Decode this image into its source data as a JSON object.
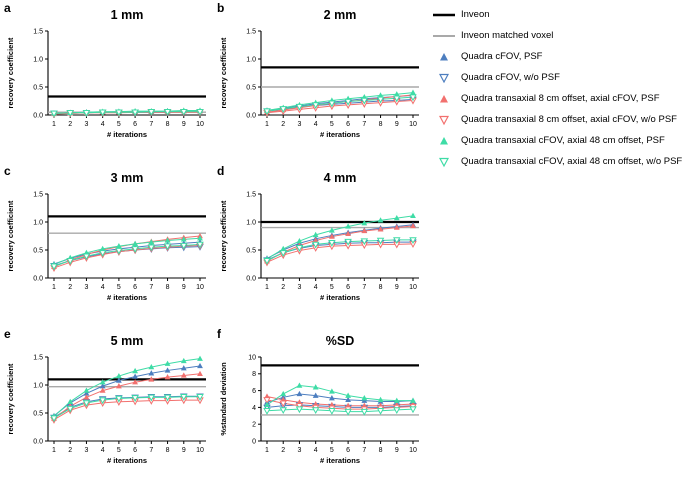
{
  "figure": {
    "background": "#ffffff"
  },
  "colors": {
    "inveon": "#000000",
    "inveon_matched": "#a9a9a9",
    "quadra_cfov": "#4d7ebf",
    "quadra_transaxial_offset": "#f2706e",
    "quadra_axial_offset": "#3edca6"
  },
  "panels": [
    {
      "letter": "a"
    },
    {
      "letter": "b"
    },
    {
      "letter": "c"
    },
    {
      "letter": "d"
    },
    {
      "letter": "e"
    },
    {
      "letter": "f"
    }
  ],
  "legend": {
    "items": [
      {
        "label": "Inveon",
        "swatch": "line",
        "color": "#000000",
        "width": 2.5
      },
      {
        "label": "Inveon matched voxel",
        "swatch": "line",
        "color": "#a9a9a9",
        "width": 2
      },
      {
        "label": "Quadra cFOV, PSF",
        "swatch": "triangle-up",
        "color": "#4d7ebf"
      },
      {
        "label": "Quadra cFOV, w/o PSF",
        "swatch": "triangle-down-open",
        "color": "#4d7ebf"
      },
      {
        "label": "Quadra transaxial 8 cm offset, axial cFOV, PSF",
        "swatch": "triangle-up",
        "color": "#f2706e"
      },
      {
        "label": "Quadra transaxial 8 cm offset, axial cFOV, w/o PSF",
        "swatch": "triangle-down-open",
        "color": "#f2706e"
      },
      {
        "label": "Quadra transaxial cFOV, axial 48 cm offset, PSF",
        "swatch": "triangle-up",
        "color": "#3edca6"
      },
      {
        "label": "Quadra transaxial cFOV, axial 48 cm offset, w/o PSF",
        "swatch": "triangle-down-open",
        "color": "#3edca6"
      }
    ]
  },
  "chart_data": [
    {
      "type": "line",
      "title": "1 mm",
      "xlabel": "# iterations",
      "ylabel": "recovery coefficient",
      "x": [
        1,
        2,
        3,
        4,
        5,
        6,
        7,
        8,
        9,
        10
      ],
      "ylim": [
        0,
        1.5
      ],
      "yticks": [
        0,
        0.5,
        1.0,
        1.5
      ],
      "ytick_labels": [
        "0.0",
        "0.5",
        "1.0",
        "1.5"
      ],
      "ref_lines": [
        {
          "name": "Inveon",
          "value": 0.33,
          "color": "#000000",
          "width": 2.2
        },
        {
          "name": "Inveon matched voxel",
          "value": 0.05,
          "color": "#a9a9a9",
          "width": 1.4
        }
      ],
      "series": [
        {
          "name": "Quadra cFOV, PSF",
          "color": "#4d7ebf",
          "marker": "triangle-up",
          "values": [
            0.03,
            0.04,
            0.05,
            0.05,
            0.06,
            0.06,
            0.06,
            0.07,
            0.07,
            0.07
          ]
        },
        {
          "name": "Quadra cFOV, w/o PSF",
          "color": "#4d7ebf",
          "marker": "triangle-down-open",
          "values": [
            0.03,
            0.04,
            0.04,
            0.05,
            0.05,
            0.05,
            0.05,
            0.05,
            0.06,
            0.06
          ]
        },
        {
          "name": "Quadra transaxial 8 cm offset, axial cFOV, PSF",
          "color": "#f2706e",
          "marker": "triangle-up",
          "values": [
            0.02,
            0.03,
            0.04,
            0.05,
            0.05,
            0.06,
            0.06,
            0.06,
            0.07,
            0.07
          ]
        },
        {
          "name": "Quadra transaxial 8 cm offset, axial cFOV, w/o PSF",
          "color": "#f2706e",
          "marker": "triangle-down-open",
          "values": [
            0.02,
            0.03,
            0.04,
            0.04,
            0.04,
            0.05,
            0.05,
            0.05,
            0.05,
            0.05
          ]
        },
        {
          "name": "Quadra transaxial cFOV, axial 48 cm offset, PSF",
          "color": "#3edca6",
          "marker": "triangle-up",
          "values": [
            0.03,
            0.04,
            0.05,
            0.06,
            0.06,
            0.07,
            0.07,
            0.07,
            0.08,
            0.08
          ]
        },
        {
          "name": "Quadra transaxial cFOV, axial 48 cm offset, w/o PSF",
          "color": "#3edca6",
          "marker": "triangle-down-open",
          "values": [
            0.03,
            0.04,
            0.04,
            0.05,
            0.05,
            0.05,
            0.06,
            0.06,
            0.06,
            0.06
          ]
        }
      ]
    },
    {
      "type": "line",
      "title": "2 mm",
      "xlabel": "# iterations",
      "ylabel": "recovery coefficient",
      "x": [
        1,
        2,
        3,
        4,
        5,
        6,
        7,
        8,
        9,
        10
      ],
      "ylim": [
        0,
        1.5
      ],
      "yticks": [
        0,
        0.5,
        1.0,
        1.5
      ],
      "ytick_labels": [
        "0.0",
        "0.5",
        "1.0",
        "1.5"
      ],
      "ref_lines": [
        {
          "name": "Inveon",
          "value": 0.85,
          "color": "#000000",
          "width": 2.2
        },
        {
          "name": "Inveon matched voxel",
          "value": 0.5,
          "color": "#a9a9a9",
          "width": 1.4
        }
      ],
      "series": [
        {
          "name": "Quadra cFOV, PSF",
          "color": "#4d7ebf",
          "marker": "triangle-up",
          "values": [
            0.08,
            0.12,
            0.16,
            0.2,
            0.23,
            0.26,
            0.29,
            0.31,
            0.33,
            0.35
          ]
        },
        {
          "name": "Quadra cFOV, w/o PSF",
          "color": "#4d7ebf",
          "marker": "triangle-down-open",
          "values": [
            0.07,
            0.1,
            0.14,
            0.17,
            0.19,
            0.21,
            0.23,
            0.25,
            0.26,
            0.28
          ]
        },
        {
          "name": "Quadra transaxial 8 cm offset, axial cFOV, PSF",
          "color": "#f2706e",
          "marker": "triangle-up",
          "values": [
            0.05,
            0.09,
            0.13,
            0.17,
            0.21,
            0.24,
            0.27,
            0.3,
            0.33,
            0.36
          ]
        },
        {
          "name": "Quadra transaxial 8 cm offset, axial cFOV, w/o PSF",
          "color": "#f2706e",
          "marker": "triangle-down-open",
          "values": [
            0.04,
            0.07,
            0.1,
            0.13,
            0.16,
            0.18,
            0.2,
            0.22,
            0.24,
            0.26
          ]
        },
        {
          "name": "Quadra transaxial cFOV, axial 48 cm offset, PSF",
          "color": "#3edca6",
          "marker": "triangle-up",
          "values": [
            0.08,
            0.13,
            0.18,
            0.22,
            0.26,
            0.29,
            0.32,
            0.35,
            0.37,
            0.4
          ]
        },
        {
          "name": "Quadra transaxial cFOV, axial 48 cm offset, w/o PSF",
          "color": "#3edca6",
          "marker": "triangle-down-open",
          "values": [
            0.07,
            0.11,
            0.15,
            0.18,
            0.21,
            0.24,
            0.26,
            0.28,
            0.3,
            0.32
          ]
        }
      ]
    },
    {
      "type": "line",
      "title": "3 mm",
      "xlabel": "# iterations",
      "ylabel": "recovery coefficient",
      "x": [
        1,
        2,
        3,
        4,
        5,
        6,
        7,
        8,
        9,
        10
      ],
      "ylim": [
        0,
        1.5
      ],
      "yticks": [
        0,
        0.5,
        1.0,
        1.5
      ],
      "ytick_labels": [
        "0.0",
        "0.5",
        "1.0",
        "1.5"
      ],
      "ref_lines": [
        {
          "name": "Inveon",
          "value": 1.1,
          "color": "#000000",
          "width": 2.2
        },
        {
          "name": "Inveon matched voxel",
          "value": 0.8,
          "color": "#a9a9a9",
          "width": 1.4
        }
      ],
      "series": [
        {
          "name": "Quadra cFOV, PSF",
          "color": "#4d7ebf",
          "marker": "triangle-up",
          "values": [
            0.25,
            0.35,
            0.43,
            0.48,
            0.52,
            0.55,
            0.58,
            0.6,
            0.62,
            0.64
          ]
        },
        {
          "name": "Quadra cFOV, w/o PSF",
          "color": "#4d7ebf",
          "marker": "triangle-down-open",
          "values": [
            0.22,
            0.31,
            0.38,
            0.43,
            0.47,
            0.5,
            0.52,
            0.54,
            0.55,
            0.56
          ]
        },
        {
          "name": "Quadra transaxial 8 cm offset, axial cFOV, PSF",
          "color": "#f2706e",
          "marker": "triangle-up",
          "values": [
            0.2,
            0.32,
            0.42,
            0.5,
            0.56,
            0.61,
            0.65,
            0.69,
            0.72,
            0.75
          ]
        },
        {
          "name": "Quadra transaxial 8 cm offset, axial cFOV, w/o PSF",
          "color": "#f2706e",
          "marker": "triangle-down-open",
          "values": [
            0.18,
            0.28,
            0.36,
            0.42,
            0.47,
            0.5,
            0.53,
            0.55,
            0.57,
            0.58
          ]
        },
        {
          "name": "Quadra transaxial cFOV, axial 48 cm offset, PSF",
          "color": "#3edca6",
          "marker": "triangle-up",
          "values": [
            0.24,
            0.36,
            0.45,
            0.52,
            0.57,
            0.61,
            0.64,
            0.67,
            0.69,
            0.71
          ]
        },
        {
          "name": "Quadra transaxial cFOV, axial 48 cm offset, w/o PSF",
          "color": "#3edca6",
          "marker": "triangle-down-open",
          "values": [
            0.21,
            0.31,
            0.39,
            0.45,
            0.49,
            0.52,
            0.55,
            0.57,
            0.58,
            0.6
          ]
        }
      ]
    },
    {
      "type": "line",
      "title": "4 mm",
      "xlabel": "# iterations",
      "ylabel": "recovery coefficient",
      "x": [
        1,
        2,
        3,
        4,
        5,
        6,
        7,
        8,
        9,
        10
      ],
      "ylim": [
        0,
        1.5
      ],
      "yticks": [
        0,
        0.5,
        1.0,
        1.5
      ],
      "ytick_labels": [
        "0.0",
        "0.5",
        "1.0",
        "1.5"
      ],
      "ref_lines": [
        {
          "name": "Inveon",
          "value": 1.0,
          "color": "#000000",
          "width": 2.2
        },
        {
          "name": "Inveon matched voxel",
          "value": 0.9,
          "color": "#a9a9a9",
          "width": 1.4
        }
      ],
      "series": [
        {
          "name": "Quadra cFOV, PSF",
          "color": "#4d7ebf",
          "marker": "triangle-up",
          "values": [
            0.35,
            0.5,
            0.62,
            0.7,
            0.76,
            0.81,
            0.85,
            0.89,
            0.92,
            0.95
          ]
        },
        {
          "name": "Quadra cFOV, w/o PSF",
          "color": "#4d7ebf",
          "marker": "triangle-down-open",
          "values": [
            0.32,
            0.45,
            0.53,
            0.58,
            0.6,
            0.62,
            0.63,
            0.63,
            0.64,
            0.64
          ]
        },
        {
          "name": "Quadra transaxial 8 cm offset, axial cFOV, PSF",
          "color": "#f2706e",
          "marker": "triangle-up",
          "values": [
            0.3,
            0.46,
            0.58,
            0.67,
            0.74,
            0.79,
            0.84,
            0.87,
            0.9,
            0.93
          ]
        },
        {
          "name": "Quadra transaxial 8 cm offset, axial cFOV, w/o PSF",
          "color": "#f2706e",
          "marker": "triangle-down-open",
          "values": [
            0.28,
            0.41,
            0.49,
            0.54,
            0.57,
            0.58,
            0.59,
            0.6,
            0.6,
            0.61
          ]
        },
        {
          "name": "Quadra transaxial cFOV, axial 48 cm offset, PSF",
          "color": "#3edca6",
          "marker": "triangle-up",
          "values": [
            0.34,
            0.52,
            0.66,
            0.77,
            0.85,
            0.92,
            0.98,
            1.03,
            1.07,
            1.11
          ]
        },
        {
          "name": "Quadra transaxial cFOV, axial 48 cm offset, w/o PSF",
          "color": "#3edca6",
          "marker": "triangle-down-open",
          "values": [
            0.31,
            0.45,
            0.54,
            0.6,
            0.63,
            0.65,
            0.66,
            0.67,
            0.68,
            0.68
          ]
        }
      ]
    },
    {
      "type": "line",
      "title": "5 mm",
      "xlabel": "# iterations",
      "ylabel": "recovery coefficient",
      "x": [
        1,
        2,
        3,
        4,
        5,
        6,
        7,
        8,
        9,
        10
      ],
      "ylim": [
        0,
        1.5
      ],
      "yticks": [
        0,
        0.5,
        1.0,
        1.5
      ],
      "ytick_labels": [
        "0.0",
        "0.5",
        "1.0",
        "1.5"
      ],
      "ref_lines": [
        {
          "name": "Inveon",
          "value": 1.1,
          "color": "#000000",
          "width": 2.2
        },
        {
          "name": "Inveon matched voxel",
          "value": 0.97,
          "color": "#a9a9a9",
          "width": 1.4
        }
      ],
      "series": [
        {
          "name": "Quadra cFOV, PSF",
          "color": "#4d7ebf",
          "marker": "triangle-up",
          "values": [
            0.45,
            0.68,
            0.85,
            0.98,
            1.08,
            1.15,
            1.21,
            1.26,
            1.3,
            1.34
          ]
        },
        {
          "name": "Quadra cFOV, w/o PSF",
          "color": "#4d7ebf",
          "marker": "triangle-down-open",
          "values": [
            0.42,
            0.6,
            0.7,
            0.75,
            0.77,
            0.78,
            0.79,
            0.79,
            0.8,
            0.8
          ]
        },
        {
          "name": "Quadra transaxial 8 cm offset, axial cFOV, PSF",
          "color": "#f2706e",
          "marker": "triangle-up",
          "values": [
            0.4,
            0.62,
            0.78,
            0.9,
            0.98,
            1.05,
            1.1,
            1.14,
            1.17,
            1.2
          ]
        },
        {
          "name": "Quadra transaxial 8 cm offset, axial cFOV, w/o PSF",
          "color": "#f2706e",
          "marker": "triangle-down-open",
          "values": [
            0.38,
            0.55,
            0.64,
            0.68,
            0.7,
            0.71,
            0.72,
            0.72,
            0.73,
            0.73
          ]
        },
        {
          "name": "Quadra transaxial cFOV, axial 48 cm offset, PSF",
          "color": "#3edca6",
          "marker": "triangle-up",
          "values": [
            0.44,
            0.7,
            0.9,
            1.05,
            1.16,
            1.25,
            1.32,
            1.38,
            1.43,
            1.47
          ]
        },
        {
          "name": "Quadra transaxial cFOV, axial 48 cm offset, w/o PSF",
          "color": "#3edca6",
          "marker": "triangle-down-open",
          "values": [
            0.41,
            0.58,
            0.68,
            0.73,
            0.76,
            0.77,
            0.78,
            0.78,
            0.79,
            0.79
          ]
        }
      ]
    },
    {
      "type": "line",
      "title": "%SD",
      "xlabel": "# iterations",
      "ylabel": "%standard deviation",
      "x": [
        1,
        2,
        3,
        4,
        5,
        6,
        7,
        8,
        9,
        10
      ],
      "ylim": [
        0,
        10
      ],
      "yticks": [
        0,
        2,
        4,
        6,
        8,
        10
      ],
      "ytick_labels": [
        "0",
        "2",
        "4",
        "6",
        "8",
        "10"
      ],
      "ref_lines": [
        {
          "name": "Inveon",
          "value": 9.0,
          "color": "#000000",
          "width": 2.2
        },
        {
          "name": "Inveon matched voxel",
          "value": 3.1,
          "color": "#a9a9a9",
          "width": 1.4
        }
      ],
      "series": [
        {
          "name": "Quadra cFOV, PSF",
          "color": "#4d7ebf",
          "marker": "triangle-up",
          "values": [
            4.6,
            5.2,
            5.6,
            5.4,
            5.1,
            4.9,
            4.8,
            4.7,
            4.7,
            4.8
          ]
        },
        {
          "name": "Quadra cFOV, w/o PSF",
          "color": "#4d7ebf",
          "marker": "triangle-down-open",
          "values": [
            4.0,
            4.2,
            4.3,
            4.2,
            4.1,
            4.0,
            4.0,
            4.0,
            4.1,
            4.2
          ]
        },
        {
          "name": "Quadra transaxial 8 cm offset, axial cFOV, PSF",
          "color": "#f2706e",
          "marker": "triangle-up",
          "values": [
            5.3,
            4.9,
            4.6,
            4.4,
            4.3,
            4.2,
            4.2,
            4.2,
            4.3,
            4.4
          ]
        },
        {
          "name": "Quadra transaxial 8 cm offset, axial cFOV, w/o PSF",
          "color": "#f2706e",
          "marker": "triangle-down-open",
          "values": [
            4.9,
            4.5,
            4.2,
            4.0,
            3.9,
            3.8,
            3.8,
            3.9,
            4.0,
            4.1
          ]
        },
        {
          "name": "Quadra transaxial cFOV, axial 48 cm offset, PSF",
          "color": "#3edca6",
          "marker": "triangle-up",
          "values": [
            4.3,
            5.6,
            6.6,
            6.4,
            5.9,
            5.4,
            5.1,
            4.9,
            4.8,
            4.8
          ]
        },
        {
          "name": "Quadra transaxial cFOV, axial 48 cm offset, w/o PSF",
          "color": "#3edca6",
          "marker": "triangle-down-open",
          "values": [
            3.6,
            3.7,
            3.8,
            3.7,
            3.6,
            3.5,
            3.5,
            3.6,
            3.7,
            3.8
          ]
        }
      ]
    }
  ]
}
